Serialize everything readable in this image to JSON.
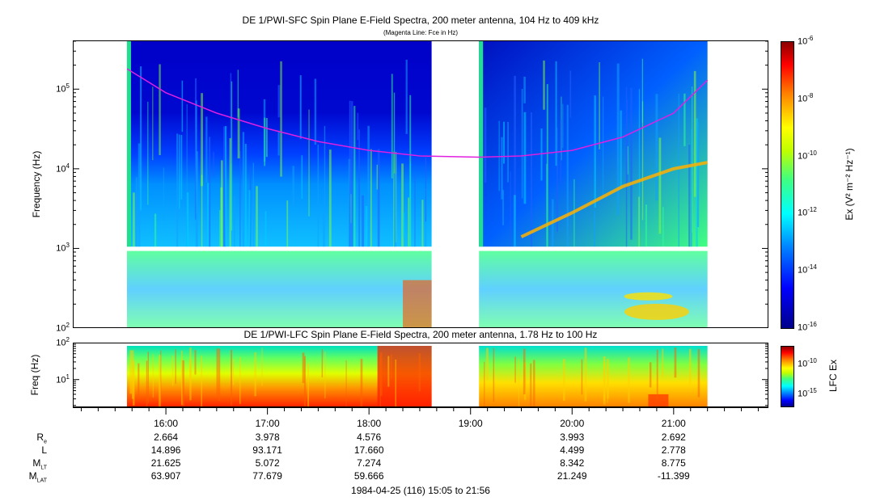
{
  "sfc": {
    "title": "DE 1/PWI-SFC  Spin Plane E-Field Spectra, 200 meter antenna, 104 Hz to 409 kHz",
    "subtitle": "(Magenta Line: Fce in Hz)",
    "ylabel": "Frequency (Hz)",
    "yticks": [
      {
        "base": "10",
        "exp": "2"
      },
      {
        "base": "10",
        "exp": "3"
      },
      {
        "base": "10",
        "exp": "4"
      },
      {
        "base": "10",
        "exp": "5"
      }
    ],
    "colorbar_label": "Ex (V² m⁻² Hz⁻¹)",
    "colorbar_ticks": [
      {
        "base": "10",
        "exp": "-6"
      },
      {
        "base": "10",
        "exp": "-8"
      },
      {
        "base": "10",
        "exp": "-10"
      },
      {
        "base": "10",
        "exp": "-12"
      },
      {
        "base": "10",
        "exp": "-14"
      },
      {
        "base": "10",
        "exp": "-16"
      }
    ]
  },
  "lfc": {
    "title": "DE 1/PWI-LFC  Spin Plane E-Field Spectra, 200 meter antenna, 1.78 Hz to 100 Hz",
    "ylabel": "Freq (Hz)",
    "yticks": [
      {
        "base": "10",
        "exp": "1"
      },
      {
        "base": "10",
        "exp": "2"
      }
    ],
    "colorbar_label": "LFC Ex",
    "colorbar_ticks": [
      {
        "base": "10",
        "exp": "-10"
      },
      {
        "base": "10",
        "exp": "-15"
      }
    ]
  },
  "ephemeris": {
    "row_labels": [
      {
        "main": "R",
        "sub": "e"
      },
      {
        "main": "L",
        "sub": ""
      },
      {
        "main": "M",
        "sub": "LT"
      },
      {
        "main": "M",
        "sub": "LAT"
      }
    ],
    "times": [
      "16:00",
      "17:00",
      "18:00",
      "19:00",
      "20:00",
      "21:00"
    ],
    "rows": [
      [
        "2.664",
        "3.978",
        "4.576",
        "",
        "3.993",
        "2.692"
      ],
      [
        "14.896",
        "93.171",
        "17.660",
        "",
        "4.499",
        "2.778"
      ],
      [
        "21.625",
        "5.072",
        "7.274",
        "",
        "8.342",
        "8.775"
      ],
      [
        "63.907",
        "77.679",
        "59.666",
        "",
        "21.249",
        "-11.399"
      ]
    ]
  },
  "footer": "1984-04-25 (116) 15:05 to 21:56",
  "colors": {
    "fce_line": "#e020e0",
    "low": "#00008b",
    "high": "#8b0000"
  },
  "chart_data": [
    {
      "type": "heatmap",
      "title": "DE 1/PWI-SFC  Spin Plane E-Field Spectra, 200 meter antenna, 104 Hz to 409 kHz",
      "subtitle": "(Magenta Line: Fce in Hz)",
      "ylabel": "Frequency (Hz)",
      "yscale": "log",
      "ylim": [
        100,
        409000
      ],
      "xlim": [
        "15:05",
        "21:56"
      ],
      "data_gaps": [
        [
          "15:05",
          "15:37"
        ],
        [
          "18:37",
          "19:05"
        ],
        [
          "21:20",
          "21:56"
        ]
      ],
      "colorbar": {
        "label": "Ex (V² m⁻² Hz⁻¹)",
        "scale": "log",
        "range": [
          1e-16,
          1e-06
        ]
      },
      "series": [
        {
          "name": "Fce in Hz",
          "x": [
            "15:37",
            "16:00",
            "16:30",
            "17:00",
            "17:30",
            "18:00",
            "18:30",
            "19:05",
            "19:30",
            "20:00",
            "20:30",
            "21:00",
            "21:20"
          ],
          "values": [
            180000,
            90000,
            50000,
            32000,
            22000,
            17000,
            14500,
            14000,
            14500,
            17000,
            25000,
            50000,
            130000
          ]
        }
      ]
    },
    {
      "type": "heatmap",
      "title": "DE 1/PWI-LFC  Spin Plane E-Field Spectra, 200 meter antenna, 1.78 Hz to 100 Hz",
      "ylabel": "Freq (Hz)",
      "yscale": "log",
      "ylim": [
        1.78,
        100
      ],
      "xlim": [
        "15:05",
        "21:56"
      ],
      "colorbar": {
        "label": "LFC Ex",
        "scale": "log",
        "range": [
          1e-17,
          1e-07
        ]
      }
    }
  ]
}
